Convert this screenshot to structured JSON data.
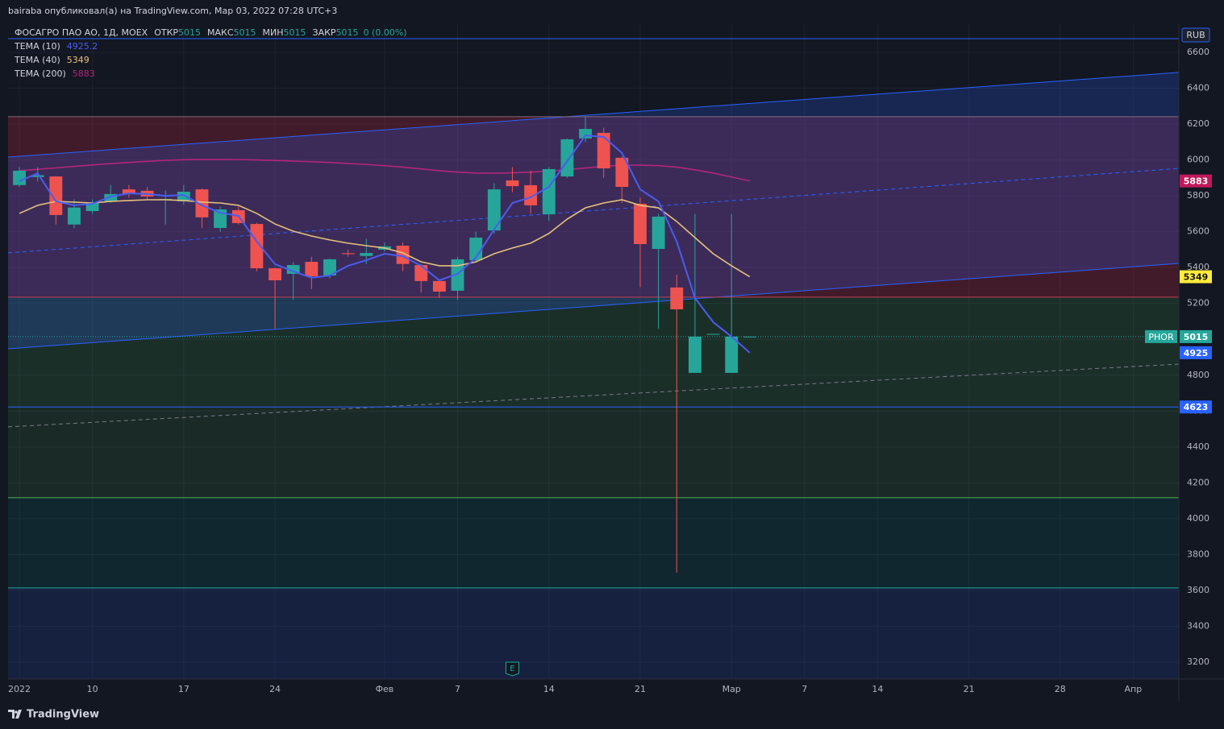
{
  "header": {
    "author_line": "bairaba опубликовал(а) на TradingView.com, Мар 03, 2022 07:28 UTC+3"
  },
  "footer": {
    "brand": "TradingView"
  },
  "chart_data": {
    "type": "candlestick",
    "symbol": "ФОСАГРО ПАО АО, 1Д, MOEX",
    "ohlc": [
      {
        "label": "ОТКР",
        "value": 5015
      },
      {
        "label": "МАКС",
        "value": 5015
      },
      {
        "label": "МИН",
        "value": 5015
      },
      {
        "label": "ЗАКР",
        "value": 5015
      }
    ],
    "change": "0 (0.00%)",
    "currency": "RUB",
    "up_color": "#26a69a",
    "down_color": "#ef5350",
    "candles": {
      "open": [
        5860,
        5905,
        5908,
        5640,
        5715,
        5770,
        5836,
        5828,
        5780,
        5769,
        5836,
        5621,
        5720,
        5643,
        5396,
        5365,
        5432,
        5356,
        5480,
        5465,
        5500,
        5522,
        5414,
        5325,
        5271,
        5441,
        5607,
        5886,
        5859,
        5697,
        5908,
        6120,
        6151,
        6012,
        5756,
        5504,
        5289,
        4813,
        5030,
        4813,
        5015
      ],
      "high": [
        5960,
        5960,
        5910,
        5780,
        5780,
        5860,
        5860,
        5850,
        5830,
        5860,
        5840,
        5740,
        5740,
        5650,
        5400,
        5430,
        5460,
        5450,
        5500,
        5560,
        5540,
        5540,
        5420,
        5335,
        5460,
        5600,
        5870,
        5960,
        5940,
        5960,
        6120,
        6240,
        6180,
        6020,
        5790,
        5700,
        5360,
        5700,
        5030,
        5700,
        5015
      ],
      "low": [
        5850,
        5880,
        5640,
        5620,
        5700,
        5760,
        5790,
        5780,
        5640,
        5750,
        5620,
        5600,
        5640,
        5380,
        5060,
        5220,
        5280,
        5340,
        5460,
        5420,
        5490,
        5380,
        5260,
        5230,
        5220,
        5430,
        5590,
        5820,
        5700,
        5660,
        5900,
        6100,
        5900,
        5760,
        5290,
        5060,
        3700,
        4813,
        5030,
        4813,
        5015
      ],
      "close": [
        5940,
        5915,
        5693,
        5735,
        5760,
        5810,
        5810,
        5796,
        5782,
        5823,
        5680,
        5724,
        5648,
        5396,
        5329,
        5414,
        5351,
        5446,
        5475,
        5481,
        5518,
        5420,
        5325,
        5266,
        5446,
        5567,
        5836,
        5854,
        5747,
        5949,
        6115,
        6173,
        5953,
        5850,
        5531,
        5684,
        5167,
        5015,
        5030,
        5015,
        5015
      ]
    },
    "series": [
      {
        "name": "TEMA (10)",
        "color": "#4a5cf0",
        "values": [
          5881,
          5926,
          5769,
          5747,
          5756,
          5796,
          5814,
          5810,
          5800,
          5805,
          5747,
          5706,
          5688,
          5545,
          5419,
          5379,
          5343,
          5356,
          5410,
          5441,
          5477,
          5463,
          5410,
          5329,
          5365,
          5455,
          5612,
          5760,
          5792,
          5850,
          5993,
          6137,
          6128,
          6039,
          5836,
          5769,
          5545,
          5230,
          5096,
          5015,
          4925.2
        ]
      },
      {
        "name": "TEMA (40)",
        "color": "#e6c17a",
        "values": [
          5702,
          5747,
          5769,
          5765,
          5760,
          5769,
          5774,
          5778,
          5778,
          5774,
          5765,
          5760,
          5747,
          5702,
          5643,
          5603,
          5576,
          5554,
          5536,
          5522,
          5509,
          5482,
          5432,
          5410,
          5410,
          5432,
          5477,
          5509,
          5536,
          5590,
          5670,
          5733,
          5760,
          5778,
          5747,
          5733,
          5657,
          5567,
          5477,
          5410,
          5349
        ]
      },
      {
        "name": "TEMA (200)",
        "color": "#b3267a",
        "values": [
          5940,
          5948,
          5956,
          5964,
          5972,
          5980,
          5986,
          5992,
          5998,
          6001,
          6003,
          6003,
          6002,
          6000,
          5997,
          5994,
          5990,
          5986,
          5980,
          5975,
          5968,
          5960,
          5950,
          5940,
          5932,
          5927,
          5926,
          5928,
          5932,
          5938,
          5946,
          5955,
          5965,
          5971,
          5971,
          5968,
          5960,
          5945,
          5927,
          5905,
          5883
        ]
      }
    ],
    "price_badges": [
      {
        "value": 5883,
        "color": "#c2185b"
      },
      {
        "value": 5349,
        "color": "#ffeb3b"
      },
      {
        "value": 5015,
        "color": "#26a69a",
        "tag": "PHOR"
      },
      {
        "value": {
          "value": 4925.2,
          "label": "4925"
        },
        "color": "#2962ff"
      },
      {
        "value": 4623,
        "color": "#2962ff"
      }
    ],
    "last_price_line": {
      "value": 5015,
      "color": "#26a69a"
    },
    "xlim": [
      -0.62,
      63.5
    ],
    "xticks": [
      {
        "value": 0,
        "label": "2022"
      },
      {
        "value": 4,
        "label": "10"
      },
      {
        "value": 9,
        "label": "17"
      },
      {
        "value": 14,
        "label": "24"
      },
      {
        "value": 20,
        "label": "Фев"
      },
      {
        "value": 24,
        "label": "7"
      },
      {
        "value": 29,
        "label": "14"
      },
      {
        "value": 34,
        "label": "21"
      },
      {
        "value": 39,
        "label": "Мар"
      },
      {
        "value": 43,
        "label": "7"
      },
      {
        "value": 47,
        "label": "14"
      },
      {
        "value": 52,
        "label": "21"
      },
      {
        "value": 57,
        "label": "28"
      },
      {
        "value": 61,
        "label": "Апр"
      }
    ],
    "ylim": [
      3106,
      6757
    ],
    "yticks": [
      3200,
      3400,
      3600,
      3800,
      4000,
      4200,
      4400,
      4600,
      4800,
      5000,
      5200,
      5400,
      5600,
      5800,
      6000,
      6200,
      6400,
      6600
    ],
    "grid": true,
    "drawings": {
      "zones": [
        {
          "from": 6241,
          "to": 5235,
          "color": "rgba(190,40,70,0.28)"
        },
        {
          "from": 5235,
          "to": 4623,
          "color": "rgba(76,175,80,0.16)"
        },
        {
          "from": 4623,
          "to": 4117,
          "color": "rgba(76,175,80,0.13)"
        },
        {
          "from": 4117,
          "to": 3614,
          "color": "rgba(0,150,136,0.13)"
        },
        {
          "from": 3614,
          "to": 3106,
          "color": "rgba(41,98,255,0.13)"
        }
      ],
      "hlines": [
        {
          "value": 6676,
          "color": "#2962ff"
        },
        {
          "value": 6241,
          "color": "#8a6a78"
        },
        {
          "value": 5235,
          "color": "#c2404f"
        },
        {
          "value": 4623,
          "color": "#2962ff"
        },
        {
          "value": 4117,
          "color": "#4caf50"
        },
        {
          "value": 3614,
          "color": "#26a69a"
        }
      ],
      "channel": {
        "upper": [
          [
            -0.62,
            6016
          ],
          [
            63.5,
            6488
          ]
        ],
        "middle": [
          [
            -0.62,
            5482
          ],
          [
            63.5,
            5953
          ]
        ],
        "lower": [
          [
            -0.62,
            4947
          ],
          [
            63.5,
            5423
          ]
        ],
        "color": "#2962ff",
        "fill": "rgba(41,98,255,0.22)"
      },
      "trendline": {
        "points": [
          [
            -0.62,
            4512
          ],
          [
            63.5,
            4862
          ]
        ],
        "color": "#787b86"
      }
    },
    "earnings_marker": {
      "x": 27,
      "label": "E"
    }
  }
}
